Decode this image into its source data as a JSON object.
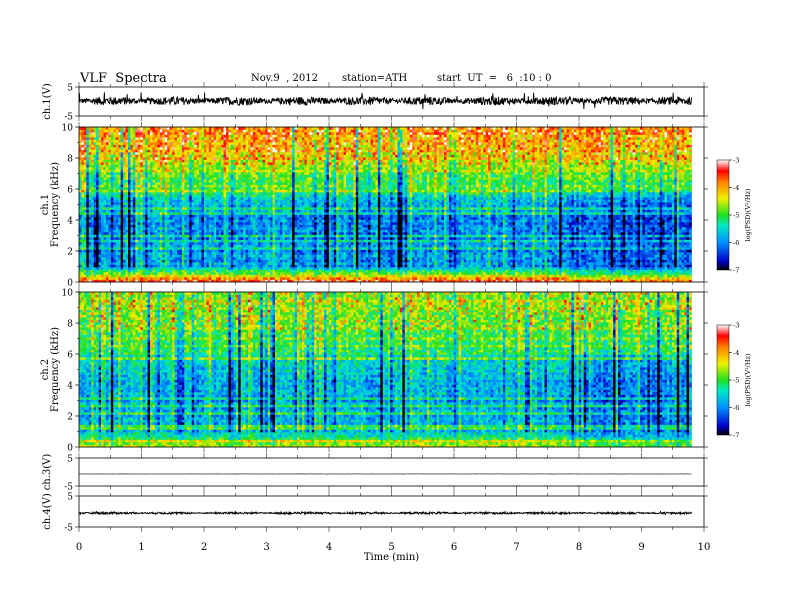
{
  "header": {
    "title": "VLF  Spectra",
    "date": "Nov.9  , 2012",
    "station": "station=ATH",
    "start": "start  UT  =   6  :10 : 0"
  },
  "chart_data": [
    {
      "id": "ch1-waveform",
      "type": "line",
      "ylabel": "ch.1(V)",
      "ylim": [
        -5,
        5
      ],
      "yticks": [
        -5,
        5
      ],
      "xlim": [
        0,
        10
      ],
      "data_end": 9.8,
      "signal": {
        "mean": 0.2,
        "spread": 1.5,
        "spike_max": 3.2
      }
    },
    {
      "id": "ch1-spectrogram",
      "type": "heatmap",
      "ylabel_top": "ch.1",
      "ylabel": "Frequency  (kHz)",
      "ylim": [
        0,
        10
      ],
      "yticks": [
        0,
        2,
        4,
        6,
        8,
        10
      ],
      "xlim": [
        0,
        10
      ],
      "data_end": 9.8,
      "colorbar": {
        "label": "log(PSD)(V²/Hz)",
        "range": [
          -7,
          -3
        ],
        "ticks": [
          -7,
          -6,
          -5,
          -4,
          -3
        ]
      },
      "profile": [
        {
          "f": 0.0,
          "v": -4.0
        },
        {
          "f": 0.3,
          "v": -4.0
        },
        {
          "f": 0.6,
          "v": -5.0
        },
        {
          "f": 1.0,
          "v": -5.8
        },
        {
          "f": 2.0,
          "v": -5.9
        },
        {
          "f": 3.0,
          "v": -6.0
        },
        {
          "f": 4.0,
          "v": -6.0
        },
        {
          "f": 5.0,
          "v": -5.7
        },
        {
          "f": 6.0,
          "v": -5.2
        },
        {
          "f": 7.0,
          "v": -4.8
        },
        {
          "f": 8.0,
          "v": -4.4
        },
        {
          "f": 9.0,
          "v": -4.1
        },
        {
          "f": 10.0,
          "v": -4.0
        }
      ]
    },
    {
      "id": "ch2-spectrogram",
      "type": "heatmap",
      "ylabel_top": "ch.2",
      "ylabel": "Frequency  (kHz)",
      "ylim": [
        0,
        10
      ],
      "yticks": [
        0,
        2,
        4,
        6,
        8,
        10
      ],
      "xlim": [
        0,
        10
      ],
      "data_end": 9.8,
      "colorbar": {
        "label": "log(PSD)(V²/Hz)",
        "range": [
          -7,
          -3
        ],
        "ticks": [
          -7,
          -6,
          -5,
          -4,
          -3
        ]
      },
      "profile": [
        {
          "f": 0.0,
          "v": -4.6
        },
        {
          "f": 0.4,
          "v": -5.0
        },
        {
          "f": 1.0,
          "v": -5.6
        },
        {
          "f": 2.0,
          "v": -5.7
        },
        {
          "f": 3.0,
          "v": -5.8
        },
        {
          "f": 4.0,
          "v": -5.8
        },
        {
          "f": 5.0,
          "v": -5.6
        },
        {
          "f": 6.0,
          "v": -5.2
        },
        {
          "f": 7.0,
          "v": -5.0
        },
        {
          "f": 8.0,
          "v": -4.9
        },
        {
          "f": 9.0,
          "v": -4.8
        },
        {
          "f": 10.0,
          "v": -4.8
        }
      ]
    },
    {
      "id": "ch3-waveform",
      "type": "line",
      "ylabel": "ch.3(V)",
      "ylim": [
        -5,
        5
      ],
      "yticks": [
        -5,
        5
      ],
      "xlim": [
        0,
        10
      ],
      "data_end": 9.8,
      "signal": {
        "mean": -0.7,
        "spread": 0.05,
        "spike_max": 0.1
      }
    },
    {
      "id": "ch4-waveform",
      "type": "line",
      "ylabel": "ch.4(V)",
      "ylim": [
        -5,
        5
      ],
      "yticks": [
        -5,
        5
      ],
      "xlim": [
        0,
        10
      ],
      "data_end": 9.8,
      "signal": {
        "mean": -0.5,
        "spread": 0.35,
        "spike_max": 0.5
      }
    }
  ],
  "xaxis": {
    "label": "Time  (min)",
    "ticks": [
      0,
      1,
      2,
      3,
      4,
      5,
      6,
      7,
      8,
      9,
      10
    ],
    "range": [
      0,
      10
    ]
  }
}
